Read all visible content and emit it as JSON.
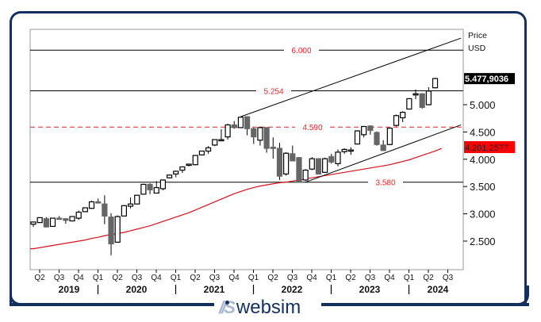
{
  "chart_data": {
    "type": "candlestick",
    "title": "",
    "xlabel": "",
    "ylabel": "Price USD",
    "axis_unit_label": [
      "Price",
      "USD"
    ],
    "ylim": [
      2.1,
      6.45
    ],
    "y_ticks": [
      2.5,
      3.0,
      3.5,
      4.0,
      4.5,
      5.0
    ],
    "y_tick_labels": [
      "2.500",
      "3.000",
      "3.500",
      "4.000",
      "4.500",
      "5.000"
    ],
    "grid": false,
    "x_quarter_labels": [
      "Q2",
      "Q3",
      "Q4",
      "Q1",
      "Q2",
      "Q3",
      "Q4",
      "Q1",
      "Q2",
      "Q3",
      "Q4",
      "Q1",
      "Q2",
      "Q3",
      "Q4",
      "Q1",
      "Q2",
      "Q3",
      "Q4",
      "Q1",
      "Q2",
      "Q3"
    ],
    "x_year_labels": [
      "2019",
      "2020",
      "2021",
      "2022",
      "2023",
      "2024"
    ],
    "last_price_label": "5.477,9036",
    "ma_value_label": "4.201,2577",
    "horizontal_levels": [
      {
        "value": 6.0,
        "label": "6.000",
        "style": "solid",
        "color": "#000000",
        "label_color": "#e8262b"
      },
      {
        "value": 5.254,
        "label": "5.254",
        "style": "solid",
        "color": "#000000",
        "label_color": "#e8262b"
      },
      {
        "value": 4.59,
        "label": "4.590",
        "style": "dashed",
        "color": "#d8262b",
        "label_color": "#e8262b"
      },
      {
        "value": 3.58,
        "label": "3.580",
        "style": "solid",
        "color": "#000000",
        "label_color": "#e8262b"
      }
    ],
    "trend_lines": [
      {
        "name": "upper-channel",
        "from": [
          32,
          4.78
        ],
        "to": [
          66,
          6.22
        ]
      },
      {
        "name": "lower-channel",
        "from": [
          42,
          3.58
        ],
        "to": [
          66,
          4.63
        ]
      }
    ],
    "moving_average": {
      "name": "Moving average",
      "color": "#d8121b",
      "values": [
        2.36,
        2.38,
        2.4,
        2.42,
        2.44,
        2.46,
        2.48,
        2.5,
        2.52,
        2.55,
        2.57,
        2.6,
        2.62,
        2.64,
        2.66,
        2.69,
        2.72,
        2.75,
        2.78,
        2.82,
        2.86,
        2.9,
        2.94,
        2.98,
        3.02,
        3.07,
        3.12,
        3.17,
        3.22,
        3.27,
        3.32,
        3.37,
        3.41,
        3.45,
        3.48,
        3.51,
        3.53,
        3.55,
        3.57,
        3.58,
        3.6,
        3.62,
        3.64,
        3.66,
        3.68,
        3.7,
        3.72,
        3.74,
        3.76,
        3.78,
        3.8,
        3.82,
        3.84,
        3.86,
        3.88,
        3.9,
        3.93,
        3.96,
        3.99,
        4.03,
        4.07,
        4.11,
        4.15,
        4.2
      ]
    },
    "candles": [
      {
        "o": 2.81,
        "h": 2.86,
        "l": 2.76,
        "c": 2.85
      },
      {
        "o": 2.84,
        "h": 2.93,
        "l": 2.83,
        "c": 2.93
      },
      {
        "o": 2.91,
        "h": 2.94,
        "l": 2.75,
        "c": 2.76
      },
      {
        "o": 2.77,
        "h": 2.92,
        "l": 2.77,
        "c": 2.92
      },
      {
        "o": 2.92,
        "h": 2.96,
        "l": 2.9,
        "c": 2.91
      },
      {
        "o": 2.91,
        "h": 2.92,
        "l": 2.82,
        "c": 2.88
      },
      {
        "o": 2.87,
        "h": 2.95,
        "l": 2.86,
        "c": 2.95
      },
      {
        "o": 2.92,
        "h": 3.06,
        "l": 2.89,
        "c": 3.03
      },
      {
        "o": 3.04,
        "h": 3.11,
        "l": 3.03,
        "c": 3.11
      },
      {
        "o": 3.1,
        "h": 3.24,
        "l": 3.09,
        "c": 3.22
      },
      {
        "o": 3.22,
        "h": 3.28,
        "l": 3.19,
        "c": 3.2
      },
      {
        "o": 3.18,
        "h": 3.34,
        "l": 2.81,
        "c": 2.96
      },
      {
        "o": 2.94,
        "h": 3.01,
        "l": 2.24,
        "c": 2.45
      },
      {
        "o": 2.48,
        "h": 2.97,
        "l": 2.47,
        "c": 2.95
      },
      {
        "o": 2.96,
        "h": 3.16,
        "l": 2.95,
        "c": 3.15
      },
      {
        "o": 3.14,
        "h": 3.3,
        "l": 3.1,
        "c": 3.18
      },
      {
        "o": 3.18,
        "h": 3.34,
        "l": 3.18,
        "c": 3.34
      },
      {
        "o": 3.36,
        "h": 3.55,
        "l": 3.36,
        "c": 3.54
      },
      {
        "o": 3.54,
        "h": 3.56,
        "l": 3.36,
        "c": 3.44
      },
      {
        "o": 3.38,
        "h": 3.6,
        "l": 3.38,
        "c": 3.48
      },
      {
        "o": 3.46,
        "h": 3.63,
        "l": 3.43,
        "c": 3.62
      },
      {
        "o": 3.66,
        "h": 3.72,
        "l": 3.65,
        "c": 3.71
      },
      {
        "o": 3.73,
        "h": 3.79,
        "l": 3.67,
        "c": 3.78
      },
      {
        "o": 3.8,
        "h": 3.86,
        "l": 3.75,
        "c": 3.86
      },
      {
        "o": 3.89,
        "h": 3.92,
        "l": 3.87,
        "c": 3.91
      },
      {
        "o": 3.9,
        "h": 4.07,
        "l": 3.89,
        "c": 4.07
      },
      {
        "o": 4.08,
        "h": 4.15,
        "l": 4.07,
        "c": 4.15
      },
      {
        "o": 4.15,
        "h": 4.24,
        "l": 4.1,
        "c": 4.21
      },
      {
        "o": 4.26,
        "h": 4.36,
        "l": 4.24,
        "c": 4.36
      },
      {
        "o": 4.36,
        "h": 4.55,
        "l": 4.33,
        "c": 4.36
      },
      {
        "o": 4.41,
        "h": 4.65,
        "l": 4.36,
        "c": 4.63
      },
      {
        "o": 4.63,
        "h": 4.7,
        "l": 4.56,
        "c": 4.58
      },
      {
        "o": 4.58,
        "h": 4.76,
        "l": 4.57,
        "c": 4.77
      },
      {
        "o": 4.78,
        "h": 4.79,
        "l": 4.44,
        "c": 4.56
      },
      {
        "o": 4.56,
        "h": 4.58,
        "l": 4.28,
        "c": 4.41
      },
      {
        "o": 4.35,
        "h": 4.6,
        "l": 4.25,
        "c": 4.58
      },
      {
        "o": 4.58,
        "h": 4.59,
        "l": 4.12,
        "c": 4.2
      },
      {
        "o": 4.22,
        "h": 4.4,
        "l": 4.01,
        "c": 4.2
      },
      {
        "o": 4.2,
        "h": 4.3,
        "l": 3.62,
        "c": 3.69
      },
      {
        "o": 3.73,
        "h": 4.13,
        "l": 3.7,
        "c": 4.11
      },
      {
        "o": 4.1,
        "h": 4.25,
        "l": 3.98,
        "c": 3.97
      },
      {
        "o": 4.03,
        "h": 4.04,
        "l": 3.58,
        "c": 3.58
      },
      {
        "o": 3.62,
        "h": 3.82,
        "l": 3.6,
        "c": 3.8
      },
      {
        "o": 3.82,
        "h": 4.04,
        "l": 3.8,
        "c": 4.01
      },
      {
        "o": 4.01,
        "h": 4.02,
        "l": 3.73,
        "c": 3.73
      },
      {
        "o": 3.76,
        "h": 4.03,
        "l": 3.75,
        "c": 4.01
      },
      {
        "o": 4.05,
        "h": 4.1,
        "l": 3.92,
        "c": 3.95
      },
      {
        "o": 3.92,
        "h": 4.18,
        "l": 3.87,
        "c": 4.13
      },
      {
        "o": 4.14,
        "h": 4.2,
        "l": 4.1,
        "c": 4.18
      },
      {
        "o": 4.16,
        "h": 4.22,
        "l": 4.08,
        "c": 4.17
      },
      {
        "o": 4.28,
        "h": 4.53,
        "l": 4.27,
        "c": 4.52
      },
      {
        "o": 4.45,
        "h": 4.61,
        "l": 4.4,
        "c": 4.6
      },
      {
        "o": 4.61,
        "h": 4.62,
        "l": 4.45,
        "c": 4.53
      },
      {
        "o": 4.49,
        "h": 4.51,
        "l": 4.25,
        "c": 4.27
      },
      {
        "o": 4.26,
        "h": 4.35,
        "l": 4.15,
        "c": 4.16
      },
      {
        "o": 4.27,
        "h": 4.58,
        "l": 4.26,
        "c": 4.57
      },
      {
        "o": 4.62,
        "h": 4.82,
        "l": 4.6,
        "c": 4.8
      },
      {
        "o": 4.76,
        "h": 4.88,
        "l": 4.68,
        "c": 4.86
      },
      {
        "o": 4.92,
        "h": 5.12,
        "l": 4.91,
        "c": 5.11
      },
      {
        "o": 5.18,
        "h": 5.28,
        "l": 5.1,
        "c": 5.2
      },
      {
        "o": 5.2,
        "h": 5.21,
        "l": 4.93,
        "c": 4.95
      },
      {
        "o": 5.0,
        "h": 5.32,
        "l": 4.99,
        "c": 5.25
      },
      {
        "o": 5.31,
        "h": 5.49,
        "l": 5.3,
        "c": 5.48
      }
    ]
  },
  "branding": {
    "logo_mark": "//S",
    "logo_text": "websim"
  },
  "colors": {
    "frame": "#13305e",
    "up_candle": "#ffffff",
    "down_candle": "#666666",
    "level_label": "#e8262b",
    "ma_badge": "#ff0000",
    "price_badge": "#000000"
  }
}
